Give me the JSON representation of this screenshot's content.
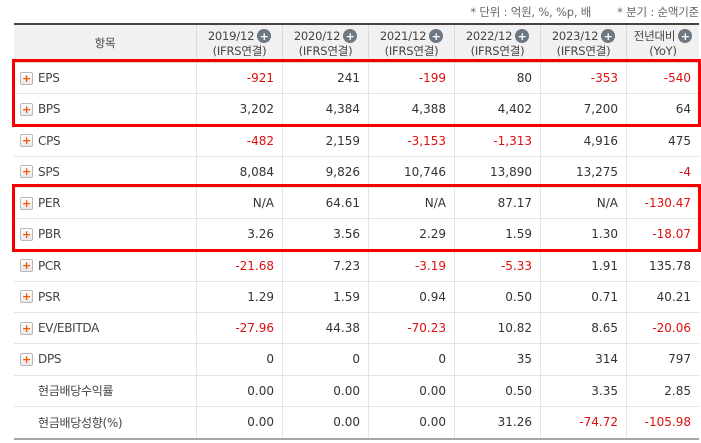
{
  "notes": {
    "unit_note": "* 단위 : 억원, %, %p, 배",
    "basis_note": "* 분기 : 순액기준"
  },
  "table": {
    "item_header": "항목",
    "columns": [
      {
        "period": "2019/12",
        "basis": "(IFRS연결)"
      },
      {
        "period": "2020/12",
        "basis": "(IFRS연결)"
      },
      {
        "period": "2021/12",
        "basis": "(IFRS연결)"
      },
      {
        "period": "2022/12",
        "basis": "(IFRS연결)"
      },
      {
        "period": "2023/12",
        "basis": "(IFRS연결)",
        "add_icon": true
      },
      {
        "period": "전년대비",
        "basis": "(YoY)"
      }
    ],
    "rows": [
      {
        "label": "EPS",
        "expandable": true,
        "highlighted": true,
        "values": [
          "-921",
          "241",
          "-199",
          "80",
          "-353",
          "-540"
        ]
      },
      {
        "label": "BPS",
        "expandable": true,
        "highlighted": true,
        "values": [
          "3,202",
          "4,384",
          "4,388",
          "4,402",
          "7,200",
          "64"
        ]
      },
      {
        "label": "CPS",
        "expandable": true,
        "highlighted": false,
        "values": [
          "-482",
          "2,159",
          "-3,153",
          "-1,313",
          "4,916",
          "475"
        ]
      },
      {
        "label": "SPS",
        "expandable": true,
        "highlighted": false,
        "values": [
          "8,084",
          "9,826",
          "10,746",
          "13,890",
          "13,275",
          "-4"
        ]
      },
      {
        "label": "PER",
        "expandable": true,
        "highlighted": true,
        "values": [
          "N/A",
          "64.61",
          "N/A",
          "87.17",
          "N/A",
          "-130.47"
        ]
      },
      {
        "label": "PBR",
        "expandable": true,
        "highlighted": true,
        "values": [
          "3.26",
          "3.56",
          "2.29",
          "1.59",
          "1.30",
          "-18.07"
        ]
      },
      {
        "label": "PCR",
        "expandable": true,
        "highlighted": false,
        "values": [
          "-21.68",
          "7.23",
          "-3.19",
          "-5.33",
          "1.91",
          "135.78"
        ]
      },
      {
        "label": "PSR",
        "expandable": true,
        "highlighted": false,
        "values": [
          "1.29",
          "1.59",
          "0.94",
          "0.50",
          "0.71",
          "40.21"
        ]
      },
      {
        "label": "EV/EBITDA",
        "expandable": true,
        "highlighted": false,
        "values": [
          "-27.96",
          "44.38",
          "-70.23",
          "10.82",
          "8.65",
          "-20.06"
        ]
      },
      {
        "label": "DPS",
        "expandable": true,
        "highlighted": false,
        "values": [
          "0",
          "0",
          "0",
          "35",
          "314",
          "797"
        ]
      },
      {
        "label": "현금배당수익률",
        "expandable": false,
        "highlighted": false,
        "values": [
          "0.00",
          "0.00",
          "0.00",
          "0.50",
          "3.35",
          "2.85"
        ]
      },
      {
        "label": "현금배당성향(%)",
        "expandable": false,
        "highlighted": false,
        "values": [
          "0.00",
          "0.00",
          "0.00",
          "31.26",
          "-74.72",
          "-105.98"
        ]
      }
    ]
  },
  "colors": {
    "negative_value": "#dd0f0f",
    "highlight_border": "#f60000",
    "plus_icon": "#f55500",
    "header_background": "#f1f1f1"
  }
}
